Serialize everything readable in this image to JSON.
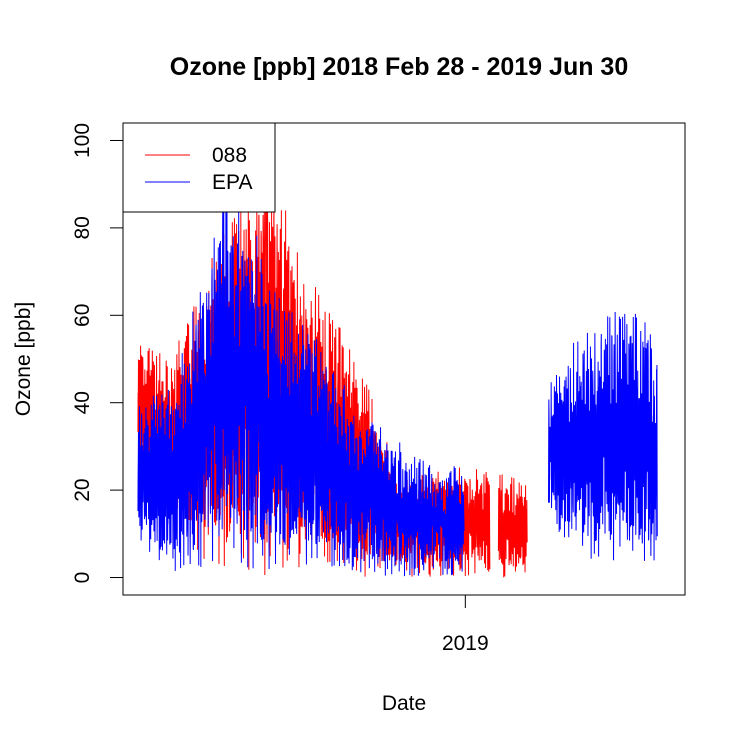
{
  "chart_data": {
    "type": "line",
    "title": "Ozone [ppb] 2018 Feb 28 - 2019 Jun 30",
    "xlabel": "Date",
    "ylabel": "Ozone [ppb]",
    "xlim": [
      "2018-02-14",
      "2019-07-26"
    ],
    "ylim": [
      -4,
      104
    ],
    "x_ticks": [
      {
        "date": "2019-01-01",
        "label": "2019"
      }
    ],
    "y_ticks": [
      0,
      20,
      40,
      60,
      80,
      100
    ],
    "y_tick_labels": [
      "0",
      "20",
      "40",
      "60",
      "80",
      "100"
    ],
    "legend": {
      "position": "top-left"
    },
    "series": [
      {
        "name": "088",
        "color": "#ff0000",
        "x_start": "2018-02-28",
        "x_end": "2019-02-28",
        "gap": [
          "2019-01-24",
          "2019-02-01"
        ],
        "profile": [
          {
            "date": "2018-02-28",
            "low": 25,
            "high": 54
          },
          {
            "date": "2018-04-01",
            "low": 8,
            "high": 50
          },
          {
            "date": "2018-05-01",
            "low": 3,
            "high": 70
          },
          {
            "date": "2018-06-01",
            "low": 1,
            "high": 88
          },
          {
            "date": "2018-07-01",
            "low": 0,
            "high": 97
          },
          {
            "date": "2018-08-01",
            "low": 1,
            "high": 72
          },
          {
            "date": "2018-09-01",
            "low": 1,
            "high": 60
          },
          {
            "date": "2018-10-01",
            "low": 0,
            "high": 45
          },
          {
            "date": "2018-11-01",
            "low": 0,
            "high": 22
          },
          {
            "date": "2018-12-01",
            "low": 0,
            "high": 25
          },
          {
            "date": "2019-01-01",
            "low": 0,
            "high": 26
          },
          {
            "date": "2019-02-28",
            "low": 0,
            "high": 22
          }
        ],
        "peak": {
          "date": "2018-06-28",
          "value": 99
        }
      },
      {
        "name": "EPA",
        "color": "#0000ff",
        "x_start": "2018-02-28",
        "x_end": "2019-06-30",
        "gap": [
          "2018-12-31",
          "2019-03-20"
        ],
        "profile": [
          {
            "date": "2018-02-28",
            "low": 8,
            "high": 40
          },
          {
            "date": "2018-04-01",
            "low": 0,
            "high": 45
          },
          {
            "date": "2018-05-01",
            "low": 2,
            "high": 70
          },
          {
            "date": "2018-05-20",
            "low": 5,
            "high": 90
          },
          {
            "date": "2018-06-15",
            "low": 1,
            "high": 82
          },
          {
            "date": "2018-07-15",
            "low": 2,
            "high": 65
          },
          {
            "date": "2018-08-15",
            "low": 2,
            "high": 55
          },
          {
            "date": "2018-09-15",
            "low": 1,
            "high": 42
          },
          {
            "date": "2018-10-15",
            "low": 0,
            "high": 35
          },
          {
            "date": "2018-11-15",
            "low": 0,
            "high": 28
          },
          {
            "date": "2018-12-31",
            "low": 0,
            "high": 25
          },
          {
            "date": "2019-03-20",
            "low": 12,
            "high": 48
          },
          {
            "date": "2019-04-15",
            "low": 5,
            "high": 55
          },
          {
            "date": "2019-05-15",
            "low": 2,
            "high": 62
          },
          {
            "date": "2019-06-30",
            "low": 3,
            "high": 60
          }
        ]
      }
    ]
  }
}
